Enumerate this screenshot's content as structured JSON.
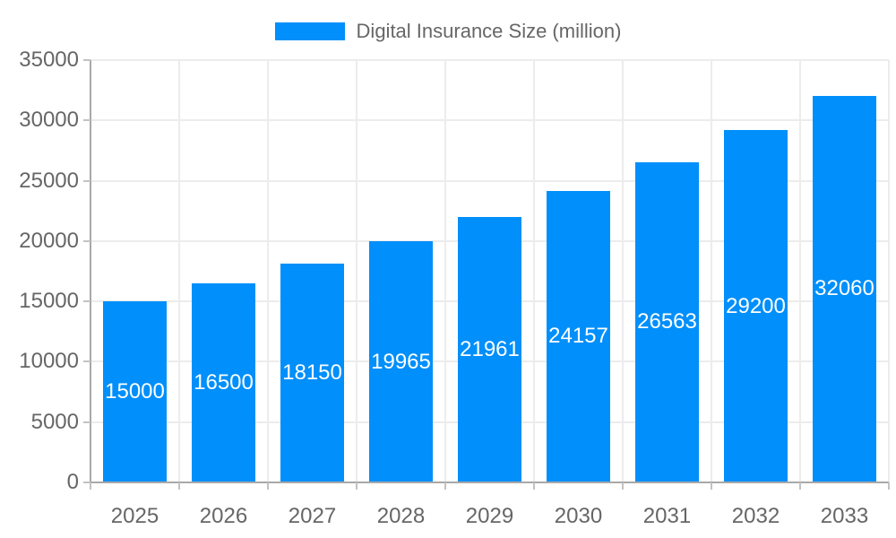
{
  "chart_data": {
    "type": "bar",
    "title": "Digital Insurance Size (million)",
    "legend": {
      "label": "Digital Insurance Size (million)",
      "position": "top"
    },
    "categories": [
      "2025",
      "2026",
      "2027",
      "2028",
      "2029",
      "2030",
      "2031",
      "2032",
      "2033"
    ],
    "series": [
      {
        "name": "Digital Insurance Size (million)",
        "values": [
          15000,
          16500,
          18150,
          19965,
          21961,
          24157,
          26563,
          29200,
          32060
        ]
      }
    ],
    "data_labels": [
      "15000",
      "16500",
      "18150",
      "19965",
      "21961",
      "24157",
      "26563",
      "29200",
      "32060"
    ],
    "xlabel": "",
    "ylabel": "",
    "ylim": [
      0,
      35000
    ],
    "ytick_step": 5000,
    "ytick_labels": [
      "0",
      "5000",
      "10000",
      "15000",
      "20000",
      "25000",
      "30000",
      "35000"
    ],
    "grid": "horizontal-and-vertical",
    "colors": {
      "bar": "#008FFB",
      "data_label": "#ffffff",
      "axis_label": "#666666",
      "legend_label": "#666666",
      "grid_line": "#ececec",
      "axis_line": "#a8a8a8",
      "tick": "#c2c2c2",
      "background": "#ffffff"
    }
  }
}
